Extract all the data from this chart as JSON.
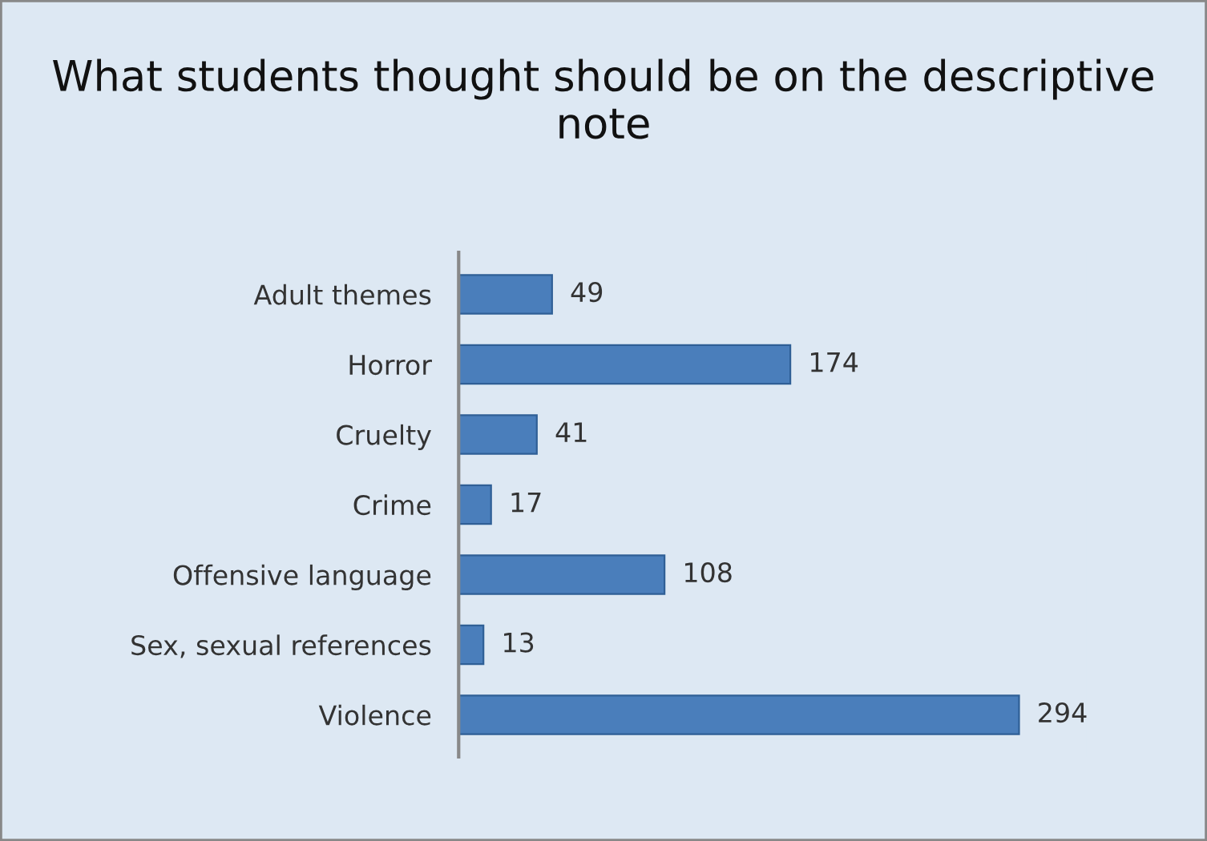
{
  "chart_data": {
    "type": "bar",
    "orientation": "horizontal",
    "title": "What students thought should be on the descriptive note",
    "categories": [
      "Adult themes",
      "Horror",
      "Cruelty",
      "Crime",
      "Offensive language",
      "Sex, sexual references",
      "Violence"
    ],
    "values": [
      49,
      174,
      41,
      17,
      108,
      13,
      294
    ],
    "color": "#4a7ebb",
    "data_labels": true,
    "tick_labels": "y",
    "grid": false,
    "legend": false
  }
}
